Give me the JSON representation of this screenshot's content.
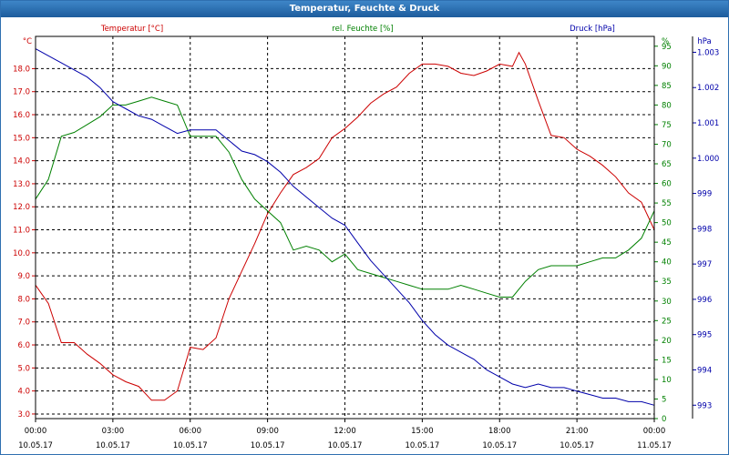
{
  "window": {
    "title": "Temperatur, Feuchte & Druck"
  },
  "colors": {
    "temperature": "#cc0000",
    "humidity": "#008000",
    "pressure": "#0000aa",
    "grid": "#000000",
    "titlebar": "#2b6fb3"
  },
  "chart_data": {
    "type": "line",
    "title": "Temperatur, Feuchte & Druck",
    "grid": true,
    "x_ticks": [
      {
        "time": "00:00",
        "date": "10.05.17"
      },
      {
        "time": "03:00",
        "date": "10.05.17"
      },
      {
        "time": "06:00",
        "date": "10.05.17"
      },
      {
        "time": "09:00",
        "date": "10.05.17"
      },
      {
        "time": "12:00",
        "date": "10.05.17"
      },
      {
        "time": "15:00",
        "date": "10.05.17"
      },
      {
        "time": "18:00",
        "date": "10.05.17"
      },
      {
        "time": "21:00",
        "date": "10.05.17"
      },
      {
        "time": "00:00",
        "date": "11.05.17"
      }
    ],
    "axes": {
      "temperature": {
        "label": "Temperatur [°C]",
        "unit": "°C",
        "ylim": [
          2.8,
          19.4
        ],
        "ticks": [
          "3.0",
          "4.0",
          "5.0",
          "6.0",
          "7.0",
          "8.0",
          "9.0",
          "10.0",
          "11.0",
          "12.0",
          "13.0",
          "14.0",
          "15.0",
          "16.0",
          "17.0",
          "18.0"
        ]
      },
      "humidity": {
        "label": "rel. Feuchte [%]",
        "unit": "%",
        "ylim": [
          0,
          97.5
        ],
        "ticks": [
          "0",
          "5",
          "10",
          "15",
          "20",
          "25",
          "30",
          "35",
          "40",
          "45",
          "50",
          "55",
          "60",
          "65",
          "70",
          "75",
          "80",
          "85",
          "90",
          "95"
        ]
      },
      "pressure": {
        "label": "Druck [hPa]",
        "unit": "hPa",
        "ylim": [
          992.62,
          1003.45
        ],
        "ticks": [
          "993",
          "994",
          "995",
          "996",
          "997",
          "998",
          "999",
          "1.000",
          "1.001",
          "1.002",
          "1.003"
        ]
      }
    },
    "series": [
      {
        "name": "Temperatur [°C]",
        "axis": "temperature",
        "x": [
          0,
          0.5,
          1,
          1.5,
          2,
          2.5,
          3,
          3.5,
          4,
          4.5,
          5,
          5.5,
          6,
          6.5,
          7,
          7.5,
          8,
          8.5,
          9,
          9.5,
          10,
          10.5,
          11,
          11.5,
          12,
          12.5,
          13,
          13.5,
          14,
          14.5,
          15,
          15.5,
          16,
          16.5,
          17,
          17.5,
          18,
          18.5,
          18.75,
          19,
          19.5,
          20,
          20.5,
          21,
          21.5,
          22,
          22.5,
          23,
          23.5,
          24
        ],
        "y": [
          8.6,
          7.8,
          6.1,
          6.1,
          5.6,
          5.2,
          4.7,
          4.4,
          4.2,
          3.6,
          3.6,
          4.0,
          5.9,
          5.8,
          6.3,
          8.0,
          9.2,
          10.4,
          11.7,
          12.6,
          13.4,
          13.7,
          14.1,
          15.0,
          15.4,
          15.9,
          16.5,
          16.9,
          17.2,
          17.8,
          18.2,
          18.2,
          18.1,
          17.8,
          17.7,
          17.9,
          18.2,
          18.1,
          18.7,
          18.2,
          16.6,
          15.1,
          15.0,
          14.5,
          14.2,
          13.8,
          13.3,
          12.6,
          12.2,
          11.0
        ]
      },
      {
        "name": "rel. Feuchte [%]",
        "axis": "humidity",
        "x": [
          0,
          0.5,
          1,
          1.5,
          2,
          2.5,
          3,
          3.5,
          4,
          4.5,
          5,
          5.5,
          6,
          6.5,
          7,
          7.5,
          8,
          8.5,
          9,
          9.5,
          10,
          10.5,
          11,
          11.5,
          12,
          12.5,
          13,
          13.5,
          14,
          14.5,
          15,
          15.5,
          16,
          16.5,
          17,
          17.5,
          18,
          18.5,
          19,
          19.5,
          20,
          20.5,
          21,
          21.5,
          22,
          22.5,
          23,
          23.5,
          24
        ],
        "y": [
          56,
          61,
          72,
          73,
          75,
          77,
          80,
          80,
          81,
          82,
          81,
          80,
          72,
          72,
          72,
          68,
          61,
          56,
          53,
          50,
          43,
          44,
          43,
          40,
          42,
          38,
          37,
          36,
          35,
          34,
          33,
          33,
          33,
          34,
          33,
          32,
          31,
          31,
          35,
          38,
          39,
          39,
          39,
          40,
          41,
          41,
          43,
          46,
          53
        ]
      },
      {
        "name": "Druck [hPa]",
        "axis": "pressure",
        "x": [
          0,
          0.5,
          1,
          1.5,
          2,
          2.5,
          3,
          3.5,
          4,
          4.5,
          5,
          5.5,
          6,
          6.5,
          7,
          7.5,
          8,
          8.5,
          9,
          9.5,
          10,
          10.5,
          11,
          11.5,
          12,
          12.5,
          13,
          13.5,
          14,
          14.5,
          15,
          15.5,
          16,
          16.5,
          17,
          17.5,
          18,
          18.5,
          19,
          19.5,
          20,
          20.5,
          21,
          21.5,
          22,
          22.5,
          23,
          23.5,
          24
        ],
        "y": [
          1003.1,
          1002.9,
          1002.7,
          1002.5,
          1002.3,
          1002.0,
          1001.6,
          1001.4,
          1001.2,
          1001.1,
          1000.9,
          1000.7,
          1000.8,
          1000.8,
          1000.8,
          1000.5,
          1000.2,
          1000.1,
          999.9,
          999.6,
          999.2,
          998.9,
          998.6,
          998.3,
          998.1,
          997.6,
          997.1,
          996.7,
          996.3,
          995.9,
          995.4,
          995.0,
          994.7,
          994.5,
          994.3,
          994.0,
          993.8,
          993.6,
          993.5,
          993.6,
          993.5,
          993.5,
          993.4,
          993.3,
          993.2,
          993.2,
          993.1,
          993.1,
          993.0
        ]
      }
    ]
  }
}
